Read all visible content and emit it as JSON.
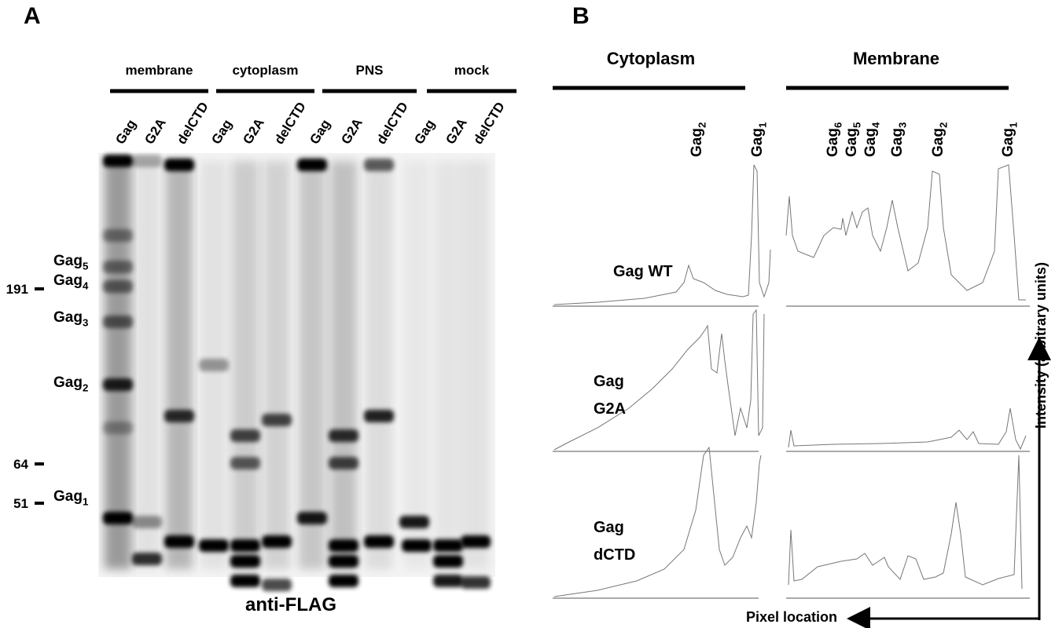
{
  "panel_a": {
    "letter": "A",
    "groups": [
      "membrane",
      "cytoplasm",
      "PNS",
      "mock"
    ],
    "lanes": [
      "Gag",
      "G2A",
      "delCTD",
      "Gag",
      "G2A",
      "delCTD",
      "Gag",
      "G2A",
      "delCTD",
      "Gag",
      "G2A",
      "delCTD"
    ],
    "markers": [
      "191",
      "64",
      "51"
    ],
    "bands": [
      {
        "text": "Gag",
        "sub": "5"
      },
      {
        "text": "Gag",
        "sub": "4"
      },
      {
        "text": "Gag",
        "sub": "3"
      },
      {
        "text": "Gag",
        "sub": "2"
      },
      {
        "text": "Gag",
        "sub": "1"
      }
    ],
    "caption": "anti-FLAG"
  },
  "panel_b": {
    "letter": "B",
    "columns": [
      "Cytoplasm",
      "Membrane"
    ],
    "cytoplasm_peaks": [
      {
        "text": "Gag",
        "sub": "2"
      },
      {
        "text": "Gag",
        "sub": "1"
      }
    ],
    "membrane_peaks": [
      {
        "text": "Gag",
        "sub": "6"
      },
      {
        "text": "Gag",
        "sub": "5"
      },
      {
        "text": "Gag",
        "sub": "4"
      },
      {
        "text": "Gag",
        "sub": "3"
      },
      {
        "text": "Gag",
        "sub": "2"
      },
      {
        "text": "Gag",
        "sub": "1"
      }
    ],
    "rows": [
      [
        "Gag WT"
      ],
      [
        "Gag",
        "G2A"
      ],
      [
        "Gag",
        "dCTD"
      ]
    ],
    "y_axis": "Intensity (arbitrary units)",
    "x_axis": "Pixel location"
  }
}
